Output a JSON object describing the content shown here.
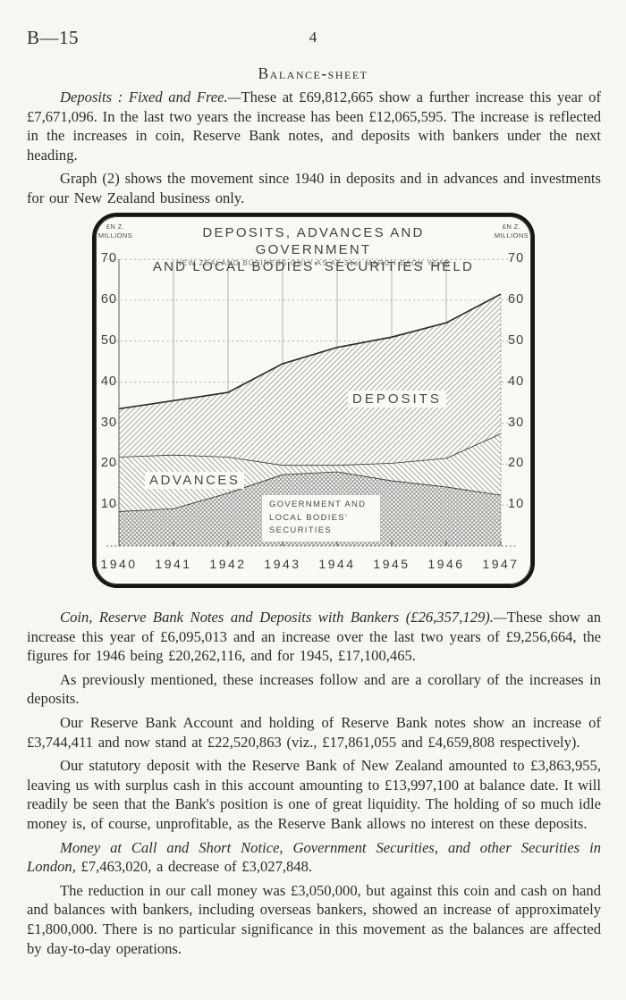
{
  "page": {
    "doc_ref": "B—15",
    "page_number": "4",
    "section_title": "Balance-sheet"
  },
  "paragraphs": [
    {
      "lead": "Deposits :  Fixed and Free.—",
      "text": "These at £69,812,665 show a further increase this year of £7,671,096.  In the last two years the increase has been £12,065,595.  The increase is reflected in the increases in coin, Reserve Bank notes, and deposits with bankers under the next heading."
    },
    {
      "lead": "",
      "text": "Graph (2) shows the movement since 1940 in deposits and in advances and investments for our New Zealand business only."
    },
    {
      "lead": "Coin, Reserve Bank Notes and Deposits with Bankers (£26,357,129).—",
      "text": "These show an increase this year of £6,095,013 and an increase over the last two years of £9,256,664, the figures for 1946 being £20,262,116, and for 1945, £17,100,465."
    },
    {
      "lead": "",
      "text": "As previously mentioned, these increases follow and are a corollary of the increases in deposits."
    },
    {
      "lead": "",
      "text": "Our Reserve Bank Account and holding of Reserve Bank notes show an increase of £3,744,411 and now stand at £22,520,863 (viz., £17,861,055 and £4,659,808 respectively)."
    },
    {
      "lead": "",
      "text": "Our statutory deposit with the Reserve Bank of New Zealand amounted to £3,863,955, leaving us with surplus cash in this account amounting to £13,997,100 at balance date.  It will readily be seen that the Bank's position is one of great liquidity.  The holding of so much idle money is, of course, unprofitable, as the Reserve Bank allows no interest on these deposits."
    },
    {
      "lead": "Money at Call and Short Notice, Government Securities, and other Securities in London,",
      "text": " £7,463,020, a decrease of £3,027,848."
    },
    {
      "lead": "",
      "text": "The reduction in our call money was £3,050,000, but against this coin and cash on hand and balances with bankers, including overseas bankers, showed an increase of approximately £1,800,000.  There is no particular significance in this movement as the balances are affected by day-to-day operations."
    }
  ],
  "chart": {
    "title_line1": "DEPOSITS, ADVANCES AND GOVERNMENT",
    "title_line2": "AND LOCAL BODIES' SECURITIES HELD",
    "subtitle": "NEW ZEALAND BUSINESS ONLY AS AT 31st MARCH EACH YEAR",
    "unit_line1": "£N Z.",
    "unit_line2": "MILLIONS",
    "labels": {
      "deposits": "DEPOSITS",
      "advances": "ADVANCES",
      "gov1": "GOVERNMENT AND",
      "gov2": "LOCAL BODIES'",
      "gov3": "SECURITIES"
    }
  },
  "chart_data": {
    "type": "area",
    "title": "DEPOSITS, ADVANCES AND GOVERNMENT AND LOCAL BODIES' SECURITIES HELD",
    "subtitle": "NEW ZEALAND BUSINESS ONLY AS AT 31st MARCH EACH YEAR",
    "ylabel": "£N Z. MILLIONS",
    "x": [
      1940,
      1941,
      1942,
      1943,
      1944,
      1945,
      1946,
      1947
    ],
    "series": [
      {
        "name": "DEPOSITS",
        "values": [
          33.5,
          35.5,
          37.5,
          44.5,
          48.5,
          51.0,
          54.5,
          61.5
        ]
      },
      {
        "name": "ADVANCES",
        "values": [
          21.8,
          22.3,
          21.8,
          19.8,
          19.8,
          20.3,
          21.5,
          27.5
        ]
      },
      {
        "name": "GOVERNMENT AND LOCAL BODIES' SECURITIES",
        "values": [
          8.5,
          9.2,
          13.0,
          17.5,
          18.2,
          16.0,
          14.5,
          12.5
        ]
      }
    ],
    "ylim": [
      0,
      75
    ],
    "yticks": [
      10,
      20,
      30,
      40,
      50,
      60,
      70
    ],
    "grid": true,
    "legend_position": "inline-labels"
  }
}
